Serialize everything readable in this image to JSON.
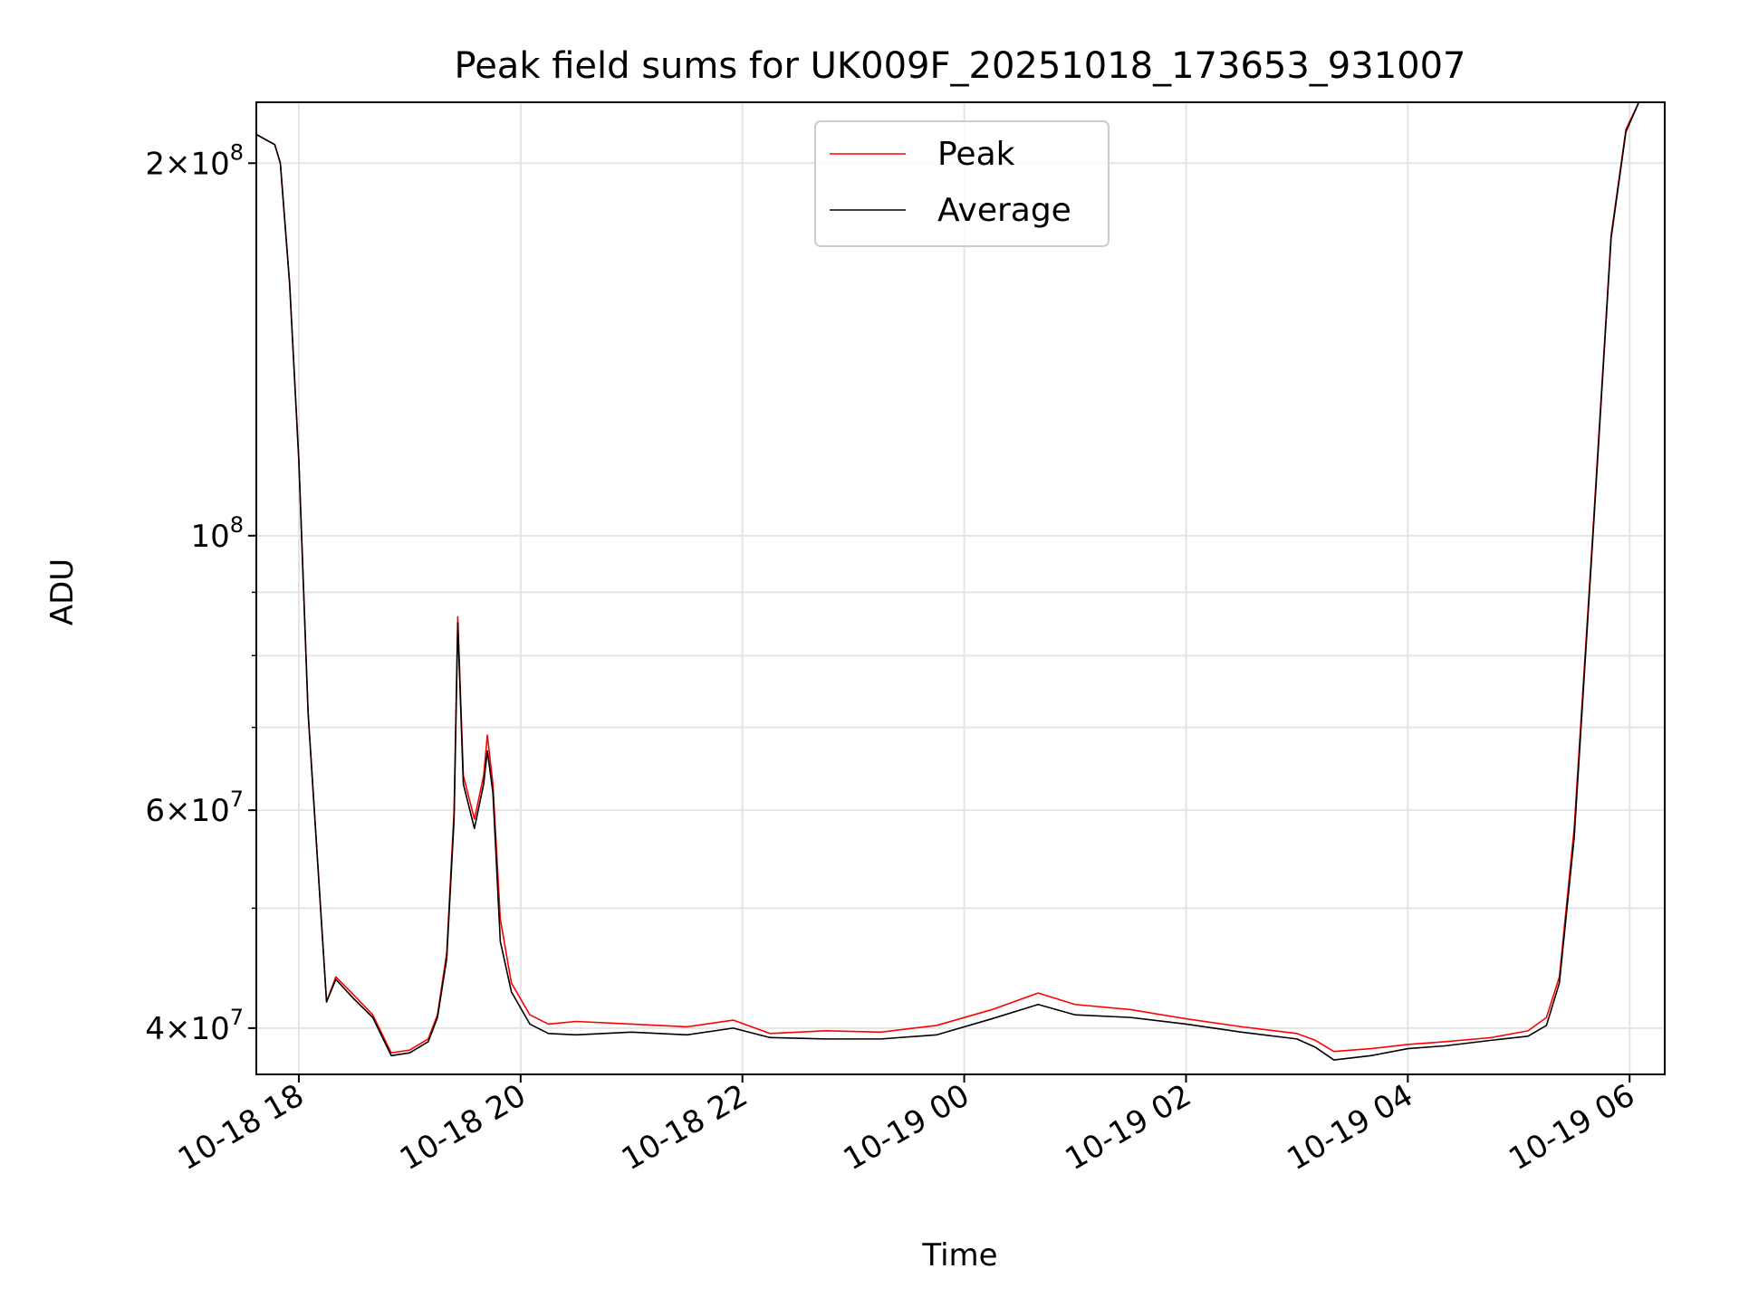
{
  "chart_data": {
    "type": "line",
    "title": "Peak field sums for UK009F_20251018_173653_931007",
    "xlabel": "Time",
    "ylabel": "ADU",
    "yscale": "log",
    "xlim": [
      "2025-10-18 17:37",
      "2025-10-19 06:19"
    ],
    "ylim": [
      36700000,
      224000000
    ],
    "x_ticks": [
      {
        "value": "2025-10-18 18:00",
        "label": "10-18 18"
      },
      {
        "value": "2025-10-18 20:00",
        "label": "10-18 20"
      },
      {
        "value": "2025-10-18 22:00",
        "label": "10-18 22"
      },
      {
        "value": "2025-10-19 00:00",
        "label": "10-19 00"
      },
      {
        "value": "2025-10-19 02:00",
        "label": "10-19 02"
      },
      {
        "value": "2025-10-19 04:00",
        "label": "10-19 04"
      },
      {
        "value": "2025-10-19 06:00",
        "label": "10-19 06"
      }
    ],
    "y_ticks": [
      {
        "value": 40000000,
        "label_mantissa": "4×10",
        "label_exp": "7"
      },
      {
        "value": 60000000,
        "label_mantissa": "6×10",
        "label_exp": "7"
      },
      {
        "value": 100000000,
        "label_mantissa": "10",
        "label_exp": "8"
      },
      {
        "value": 200000000,
        "label_mantissa": "2×10",
        "label_exp": "8"
      }
    ],
    "y_minor_ticks": [
      50000000,
      70000000,
      80000000,
      90000000
    ],
    "grid": true,
    "legend_position": "upper center",
    "series": [
      {
        "name": "Peak",
        "color": "#ff0000",
        "points": [
          [
            "2025-10-18 17:37",
            211000000
          ],
          [
            "2025-10-18 17:42",
            209000000
          ],
          [
            "2025-10-18 17:47",
            207000000
          ],
          [
            "2025-10-18 17:50",
            200000000
          ],
          [
            "2025-10-18 17:55",
            160000000
          ],
          [
            "2025-10-18 18:00",
            115000000
          ],
          [
            "2025-10-18 18:05",
            72000000
          ],
          [
            "2025-10-18 18:10",
            55000000
          ],
          [
            "2025-10-18 18:15",
            42000000
          ],
          [
            "2025-10-18 18:20",
            44000000
          ],
          [
            "2025-10-18 18:30",
            42500000
          ],
          [
            "2025-10-18 18:40",
            41000000
          ],
          [
            "2025-10-18 18:50",
            38200000
          ],
          [
            "2025-10-18 19:00",
            38400000
          ],
          [
            "2025-10-18 19:10",
            39200000
          ],
          [
            "2025-10-18 19:15",
            41000000
          ],
          [
            "2025-10-18 19:20",
            46000000
          ],
          [
            "2025-10-18 19:24",
            60000000
          ],
          [
            "2025-10-18 19:26",
            86000000
          ],
          [
            "2025-10-18 19:29",
            64000000
          ],
          [
            "2025-10-18 19:35",
            59000000
          ],
          [
            "2025-10-18 19:40",
            64000000
          ],
          [
            "2025-10-18 19:42",
            69000000
          ],
          [
            "2025-10-18 19:45",
            63000000
          ],
          [
            "2025-10-18 19:49",
            49000000
          ],
          [
            "2025-10-18 19:55",
            43500000
          ],
          [
            "2025-10-18 20:05",
            41000000
          ],
          [
            "2025-10-18 20:15",
            40300000
          ],
          [
            "2025-10-18 20:30",
            40500000
          ],
          [
            "2025-10-18 21:00",
            40300000
          ],
          [
            "2025-10-18 21:30",
            40100000
          ],
          [
            "2025-10-18 21:55",
            40600000
          ],
          [
            "2025-10-18 22:15",
            39600000
          ],
          [
            "2025-10-18 22:45",
            39800000
          ],
          [
            "2025-10-18 23:15",
            39700000
          ],
          [
            "2025-10-18 23:45",
            40200000
          ],
          [
            "2025-10-19 00:15",
            41400000
          ],
          [
            "2025-10-19 00:40",
            42700000
          ],
          [
            "2025-10-19 01:00",
            41800000
          ],
          [
            "2025-10-19 01:30",
            41400000
          ],
          [
            "2025-10-19 02:00",
            40700000
          ],
          [
            "2025-10-19 02:30",
            40100000
          ],
          [
            "2025-10-19 03:00",
            39600000
          ],
          [
            "2025-10-19 03:10",
            39100000
          ],
          [
            "2025-10-19 03:20",
            38300000
          ],
          [
            "2025-10-19 03:40",
            38500000
          ],
          [
            "2025-10-19 04:00",
            38800000
          ],
          [
            "2025-10-19 04:20",
            39000000
          ],
          [
            "2025-10-19 04:45",
            39300000
          ],
          [
            "2025-10-19 05:05",
            39800000
          ],
          [
            "2025-10-19 05:15",
            40800000
          ],
          [
            "2025-10-19 05:22",
            44000000
          ],
          [
            "2025-10-19 05:30",
            58000000
          ],
          [
            "2025-10-19 05:40",
            100000000
          ],
          [
            "2025-10-19 05:50",
            175000000
          ],
          [
            "2025-10-19 05:58",
            213000000
          ],
          [
            "2025-10-19 06:05",
            224000000
          ],
          [
            "2025-10-19 06:19",
            224000000
          ]
        ]
      },
      {
        "name": "Average",
        "color": "#000000",
        "points": [
          [
            "2025-10-18 17:37",
            211000000
          ],
          [
            "2025-10-18 17:42",
            209000000
          ],
          [
            "2025-10-18 17:47",
            207000000
          ],
          [
            "2025-10-18 17:50",
            200000000
          ],
          [
            "2025-10-18 17:55",
            160000000
          ],
          [
            "2025-10-18 18:00",
            115000000
          ],
          [
            "2025-10-18 18:05",
            72000000
          ],
          [
            "2025-10-18 18:10",
            55000000
          ],
          [
            "2025-10-18 18:15",
            42000000
          ],
          [
            "2025-10-18 18:20",
            43800000
          ],
          [
            "2025-10-18 18:30",
            42200000
          ],
          [
            "2025-10-18 18:40",
            40800000
          ],
          [
            "2025-10-18 18:50",
            38000000
          ],
          [
            "2025-10-18 19:00",
            38200000
          ],
          [
            "2025-10-18 19:10",
            39000000
          ],
          [
            "2025-10-18 19:15",
            40800000
          ],
          [
            "2025-10-18 19:20",
            45500000
          ],
          [
            "2025-10-18 19:24",
            59000000
          ],
          [
            "2025-10-18 19:26",
            85000000
          ],
          [
            "2025-10-18 19:29",
            63000000
          ],
          [
            "2025-10-18 19:35",
            58000000
          ],
          [
            "2025-10-18 19:40",
            63000000
          ],
          [
            "2025-10-18 19:42",
            67000000
          ],
          [
            "2025-10-18 19:45",
            62000000
          ],
          [
            "2025-10-18 19:49",
            47000000
          ],
          [
            "2025-10-18 19:55",
            42800000
          ],
          [
            "2025-10-18 20:05",
            40300000
          ],
          [
            "2025-10-18 20:15",
            39600000
          ],
          [
            "2025-10-18 20:30",
            39500000
          ],
          [
            "2025-10-18 21:00",
            39700000
          ],
          [
            "2025-10-18 21:30",
            39500000
          ],
          [
            "2025-10-18 21:55",
            40000000
          ],
          [
            "2025-10-18 22:15",
            39300000
          ],
          [
            "2025-10-18 22:45",
            39200000
          ],
          [
            "2025-10-18 23:15",
            39200000
          ],
          [
            "2025-10-18 23:45",
            39500000
          ],
          [
            "2025-10-19 00:15",
            40700000
          ],
          [
            "2025-10-19 00:40",
            41800000
          ],
          [
            "2025-10-19 01:00",
            41000000
          ],
          [
            "2025-10-19 01:30",
            40800000
          ],
          [
            "2025-10-19 02:00",
            40300000
          ],
          [
            "2025-10-19 02:30",
            39700000
          ],
          [
            "2025-10-19 03:00",
            39200000
          ],
          [
            "2025-10-19 03:10",
            38600000
          ],
          [
            "2025-10-19 03:20",
            37700000
          ],
          [
            "2025-10-19 03:40",
            38000000
          ],
          [
            "2025-10-19 04:00",
            38500000
          ],
          [
            "2025-10-19 04:20",
            38700000
          ],
          [
            "2025-10-19 04:45",
            39100000
          ],
          [
            "2025-10-19 05:05",
            39400000
          ],
          [
            "2025-10-19 05:15",
            40200000
          ],
          [
            "2025-10-19 05:22",
            43500000
          ],
          [
            "2025-10-19 05:30",
            57000000
          ],
          [
            "2025-10-19 05:40",
            99000000
          ],
          [
            "2025-10-19 05:50",
            174000000
          ],
          [
            "2025-10-19 05:58",
            212000000
          ],
          [
            "2025-10-19 06:05",
            224000000
          ],
          [
            "2025-10-19 06:19",
            224000000
          ]
        ]
      }
    ]
  }
}
